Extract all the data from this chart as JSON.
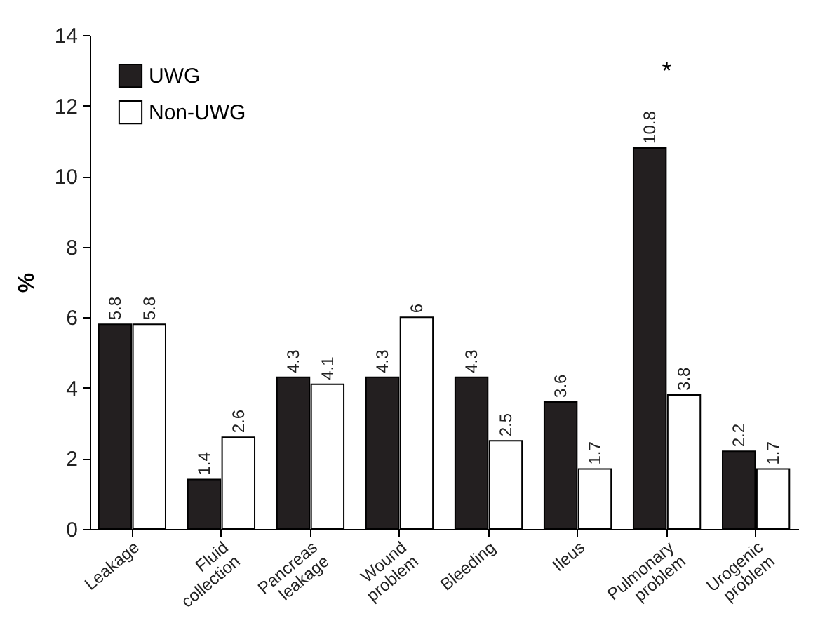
{
  "chart_data": {
    "type": "bar",
    "ylabel": "%",
    "categories": [
      "Leakage",
      "Fluid collection",
      "Pancreas leakage",
      "Wound problem",
      "Bleeding",
      "Ileus",
      "Pulmonary problem",
      "Urogenic problem"
    ],
    "series": [
      {
        "name": "UWG",
        "color": "#231f20",
        "values": [
          5.8,
          1.4,
          4.3,
          4.3,
          4.3,
          3.6,
          10.8,
          2.2
        ]
      },
      {
        "name": "Non-UWG",
        "color": "#ffffff",
        "values": [
          5.8,
          2.6,
          4.1,
          6,
          2.5,
          1.7,
          3.8,
          1.7
        ]
      }
    ],
    "ylim": [
      0,
      14
    ],
    "yticks": [
      0,
      2,
      4,
      6,
      8,
      10,
      12,
      14
    ],
    "grid": false,
    "legend": "top left",
    "data_labels": true,
    "annotations": [
      "*"
    ]
  }
}
